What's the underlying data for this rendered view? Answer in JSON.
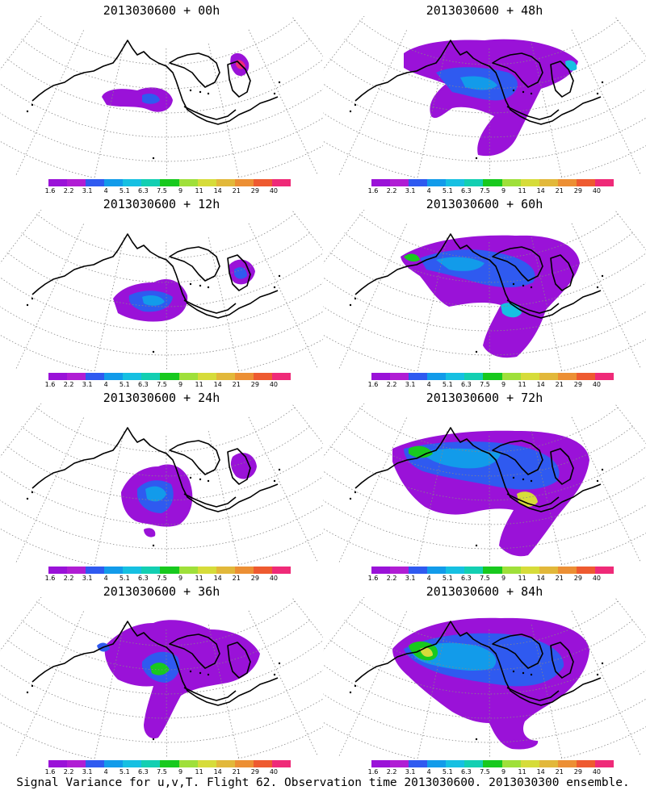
{
  "panels": [
    {
      "title": "2013030600 + 00h",
      "lead_hours": 0
    },
    {
      "title": "2013030600 + 48h",
      "lead_hours": 48
    },
    {
      "title": "2013030600 + 12h",
      "lead_hours": 12
    },
    {
      "title": "2013030600 + 60h",
      "lead_hours": 60
    },
    {
      "title": "2013030600 + 24h",
      "lead_hours": 24
    },
    {
      "title": "2013030600 + 72h",
      "lead_hours": 72
    },
    {
      "title": "2013030600 + 36h",
      "lead_hours": 36
    },
    {
      "title": "2013030600 + 84h",
      "lead_hours": 84
    }
  ],
  "colorbar": {
    "colors": [
      "#9a12d8",
      "#b01dd4",
      "#2f5af0",
      "#129bea",
      "#16c0e2",
      "#13cfb2",
      "#18c91e",
      "#9fe03a",
      "#d6dc3a",
      "#e2b83a",
      "#ec8f34",
      "#ee5a30",
      "#ef2a78"
    ],
    "labels": [
      "1.6",
      "2.2",
      "3.1",
      "4",
      "5.1",
      "6.3",
      "7.5",
      "9",
      "11",
      "14",
      "21",
      "29",
      "40"
    ]
  },
  "footer": {
    "caption": "Signal Variance for u,v,T. Flight 62. Observation time 2013030600. 2013030300 ensemble."
  }
}
